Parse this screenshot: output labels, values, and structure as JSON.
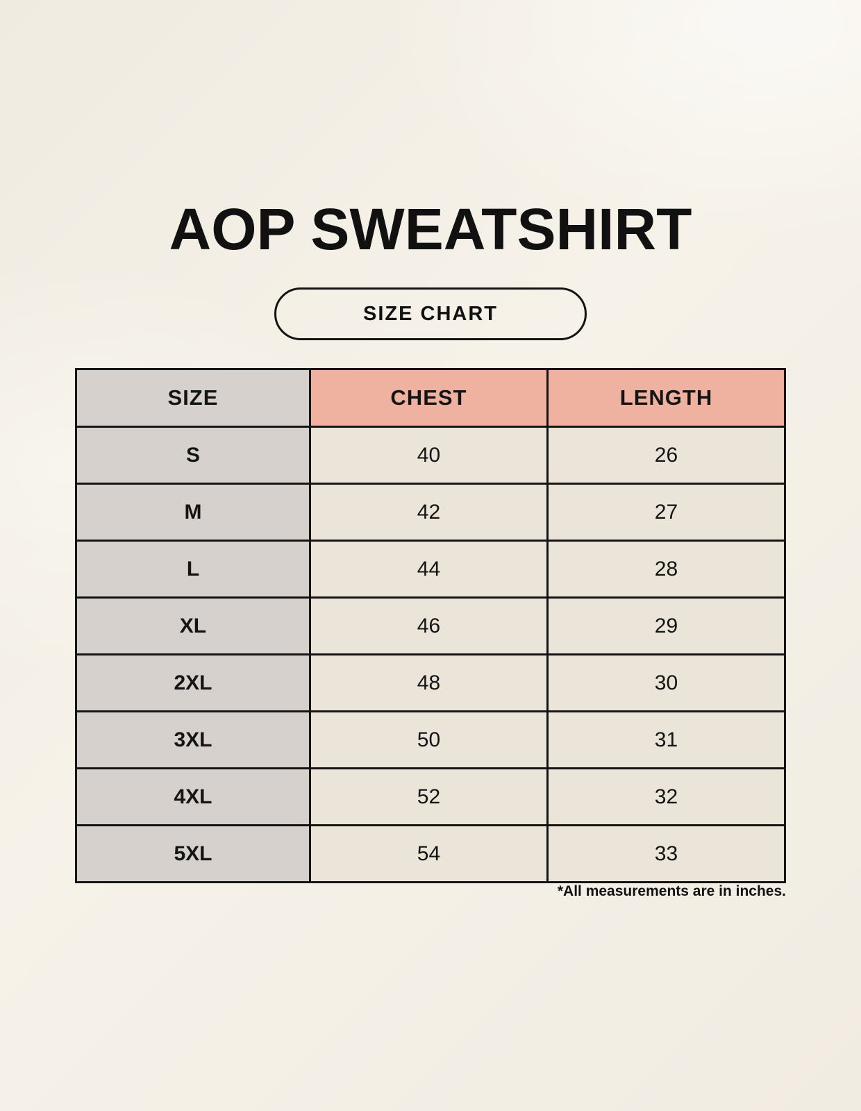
{
  "page": {
    "title": "AOP SWEATSHIRT",
    "badge_label": "SIZE CHART",
    "footnote": "*All measurements are in inches."
  },
  "chart_data": {
    "type": "table",
    "title": "AOP SWEATSHIRT",
    "subtitle": "SIZE CHART",
    "columns": [
      "SIZE",
      "CHEST",
      "LENGTH"
    ],
    "rows": [
      [
        "S",
        40,
        26
      ],
      [
        "M",
        42,
        27
      ],
      [
        "L",
        44,
        28
      ],
      [
        "XL",
        46,
        29
      ],
      [
        "2XL",
        48,
        30
      ],
      [
        "3XL",
        50,
        31
      ],
      [
        "4XL",
        52,
        32
      ],
      [
        "5XL",
        54,
        33
      ]
    ],
    "units": "inches"
  },
  "colors": {
    "page_bg": "#f3efe6",
    "accent_header_bg": "#f0b2a0",
    "size_column_bg": "#d7d1cd",
    "value_cell_bg": "#eae4d9",
    "ink": "#141414"
  }
}
